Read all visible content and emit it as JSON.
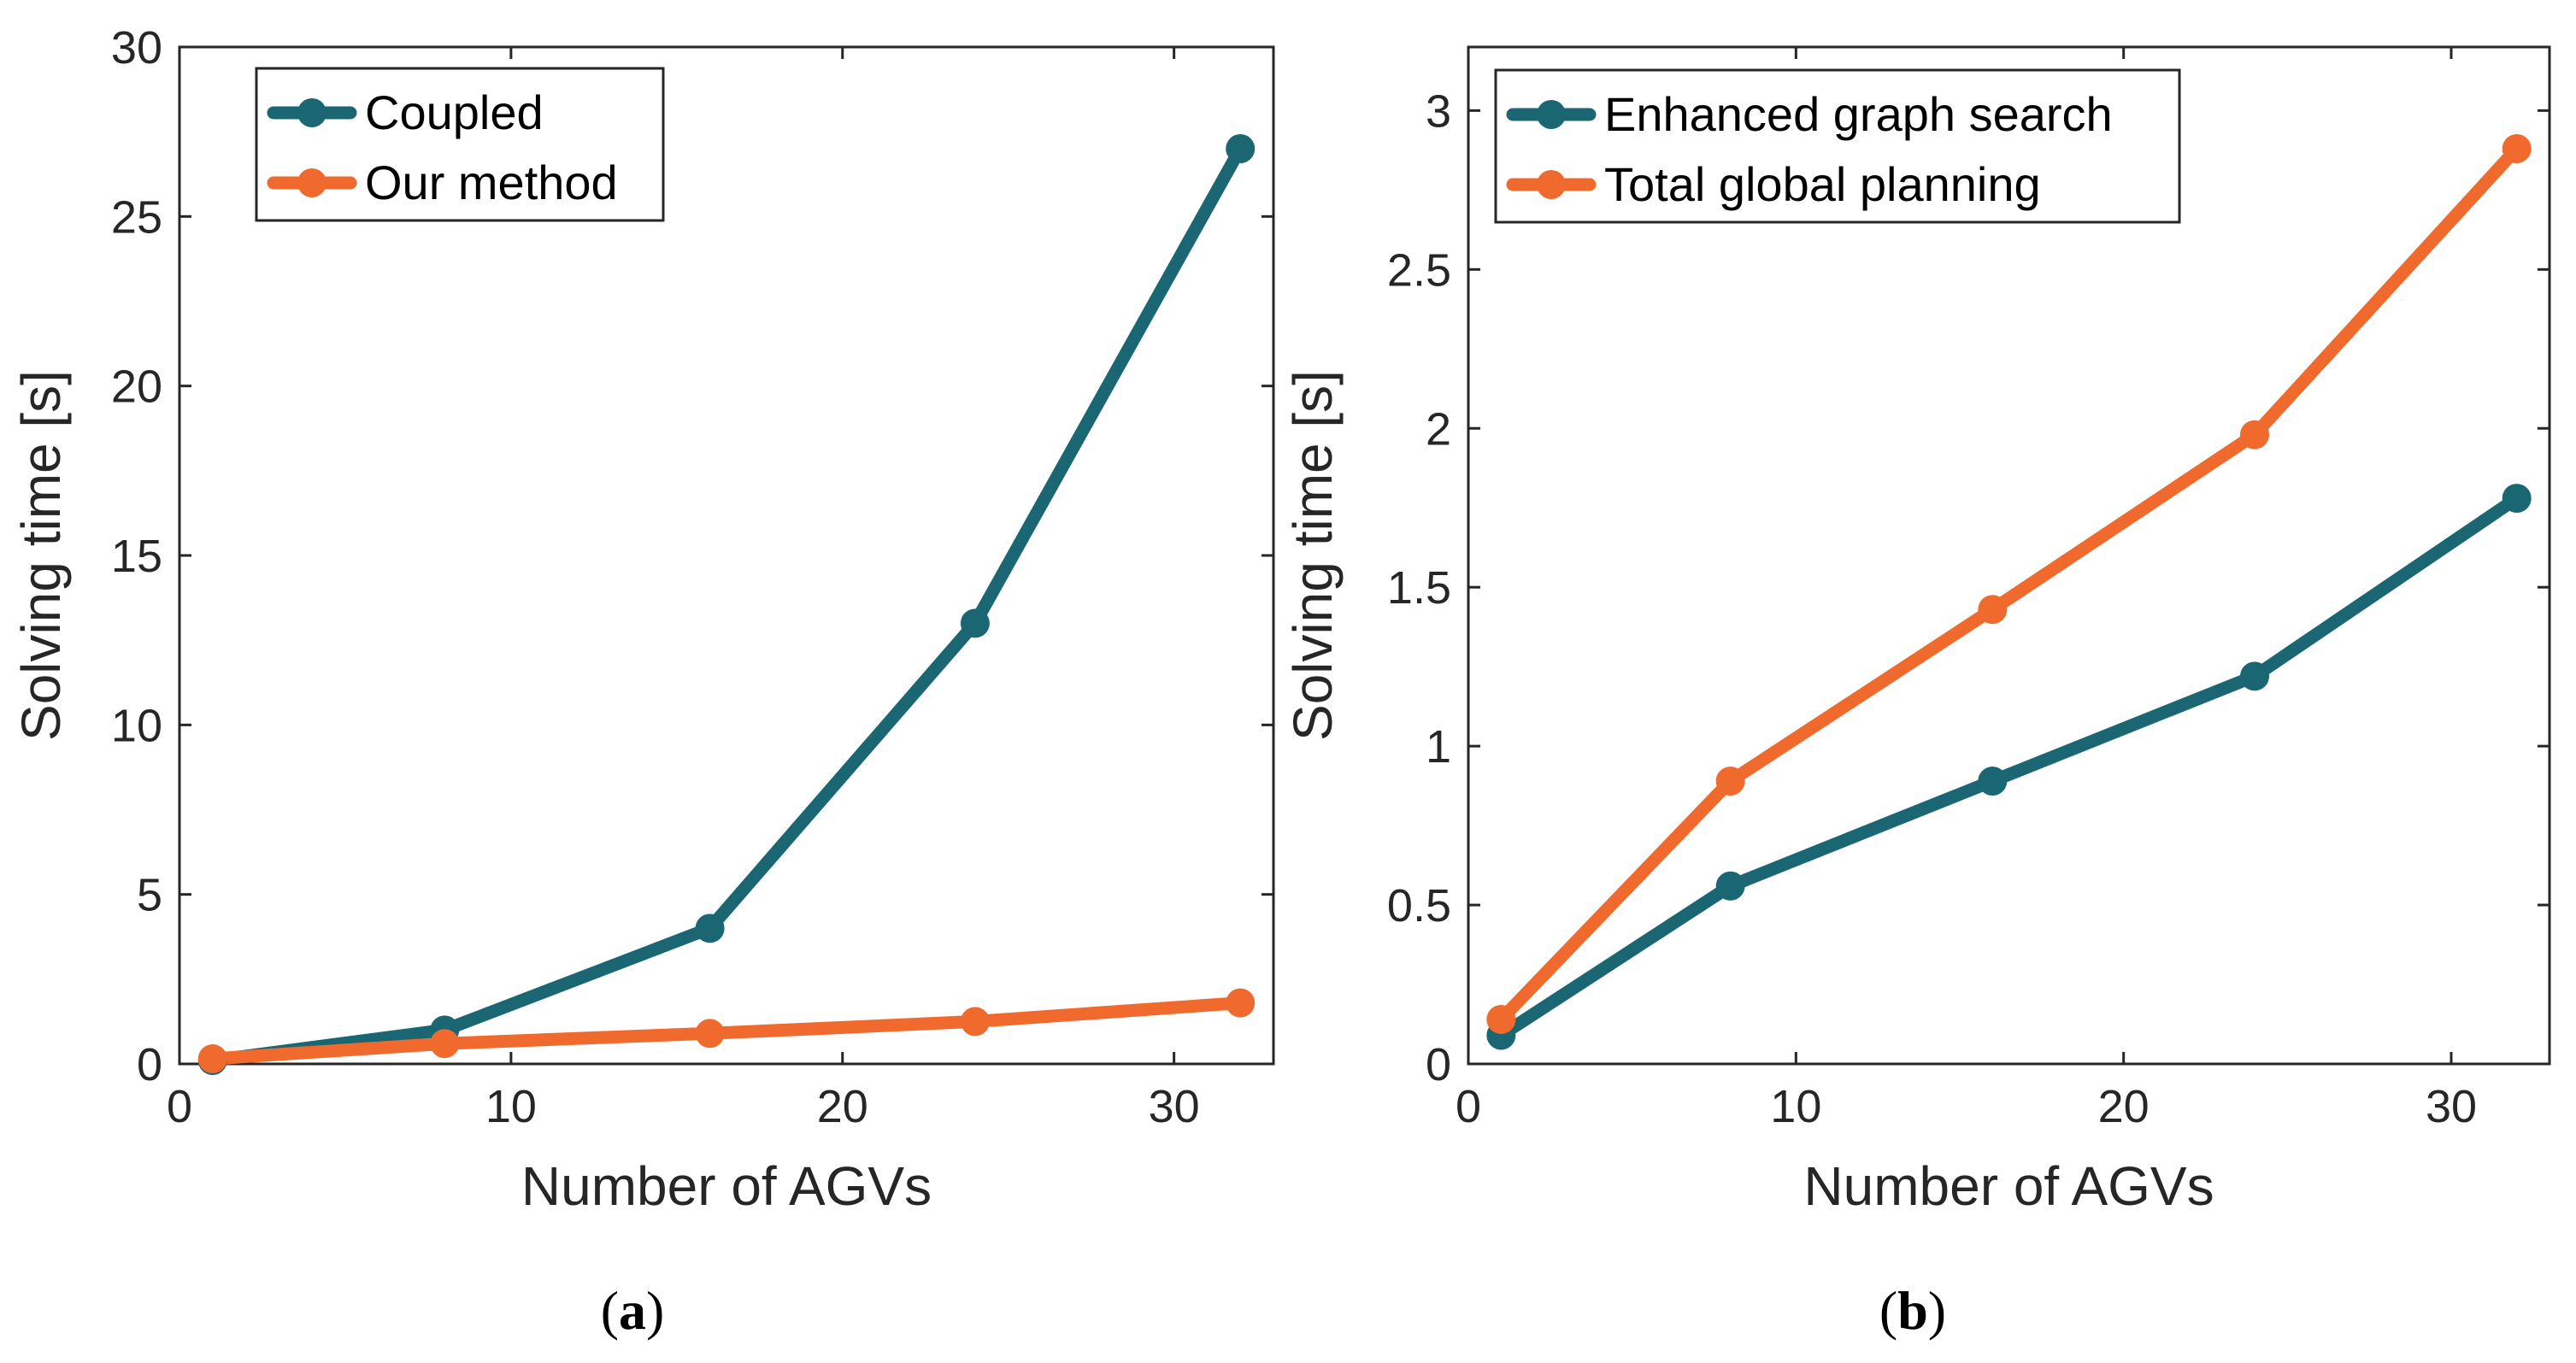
{
  "colors": {
    "teal": "#1a6673",
    "orange": "#ef6a2c",
    "axis": "#262626"
  },
  "chart_data": [
    {
      "type": "line",
      "caption_open": "(",
      "caption_letter": "a",
      "caption_close": ")",
      "xlabel": "Number of AGVs",
      "ylabel": "Solving time [s]",
      "xlim": [
        0,
        33
      ],
      "ylim": [
        0,
        30
      ],
      "xticks": [
        0,
        10,
        20,
        30
      ],
      "yticks": [
        0,
        5,
        10,
        15,
        20,
        25,
        30
      ],
      "legend_position": "top-left",
      "grid": false,
      "series": [
        {
          "name": "Coupled",
          "color": "#1a6673",
          "x": [
            1,
            8,
            16,
            24,
            32
          ],
          "y": [
            0.1,
            1.0,
            4.0,
            13.0,
            27.0
          ]
        },
        {
          "name": "Our method",
          "color": "#ef6a2c",
          "x": [
            1,
            8,
            16,
            24,
            32
          ],
          "y": [
            0.15,
            0.6,
            0.9,
            1.25,
            1.8
          ]
        }
      ]
    },
    {
      "type": "line",
      "caption_open": "(",
      "caption_letter": "b",
      "caption_close": ")",
      "xlabel": "Number of AGVs",
      "ylabel": "Solving time [s]",
      "xlim": [
        0,
        33
      ],
      "ylim": [
        0,
        3.2
      ],
      "xticks": [
        0,
        10,
        20,
        30
      ],
      "yticks": [
        0,
        0.5,
        1,
        1.5,
        2,
        2.5,
        3
      ],
      "legend_position": "top-left",
      "grid": false,
      "series": [
        {
          "name": "Enhanced graph search",
          "color": "#1a6673",
          "x": [
            1,
            8,
            16,
            24,
            32
          ],
          "y": [
            0.09,
            0.56,
            0.89,
            1.22,
            1.78
          ]
        },
        {
          "name": "Total global planning",
          "color": "#ef6a2c",
          "x": [
            1,
            8,
            16,
            24,
            32
          ],
          "y": [
            0.14,
            0.89,
            1.43,
            1.98,
            2.88
          ]
        }
      ]
    }
  ]
}
